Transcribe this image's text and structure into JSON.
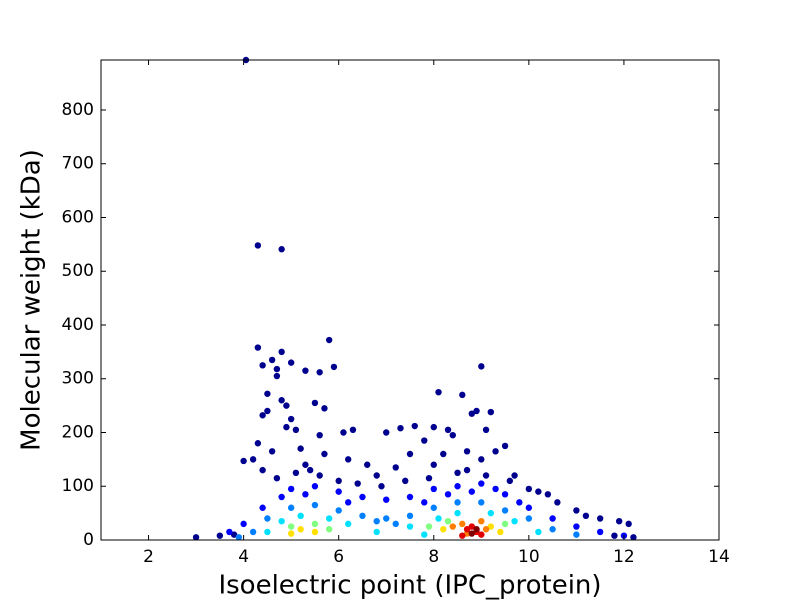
{
  "chart_data": {
    "type": "scatter",
    "x_label": "Isoelectric point (IPC_protein)",
    "y_label": "Molecular weight (kDa)",
    "xlim": [
      1,
      14
    ],
    "xticks": [
      2,
      4,
      6,
      8,
      10,
      12,
      14
    ],
    "ylim": [
      0,
      893
    ],
    "yticks": [
      0,
      100,
      200,
      300,
      400,
      500,
      600,
      700,
      800
    ],
    "grid": false,
    "series": [
      {
        "color": "#00008f",
        "x": [
          4.05,
          4.3,
          4.8,
          5.8,
          4.3,
          4.8,
          5.6,
          4.4,
          4.7,
          4.6,
          5.0,
          5.3,
          4.7,
          5.9,
          9.0,
          8.1,
          8.6,
          4.5,
          4.8,
          4.9,
          5.5,
          5.7,
          4.5,
          4.4,
          8.9,
          9.2,
          8.8,
          5.0,
          4.9,
          5.1,
          5.6,
          6.1,
          6.3,
          7.0,
          7.3,
          7.6,
          8.0,
          8.3,
          8.4,
          9.1,
          9.5,
          4.3,
          4.2,
          4.0,
          4.6,
          5.2,
          5.7,
          6.2,
          7.8,
          8.2,
          8.7,
          9.3,
          9.0,
          10.4,
          10.6,
          11.2,
          11.5,
          11.9,
          12.1,
          10.0,
          3.0,
          3.5,
          3.8,
          6.6,
          7.2,
          7.5,
          6.8,
          4.4,
          5.3,
          8.0,
          9.7,
          11.0,
          12.2,
          11.8,
          4.7,
          5.1,
          5.6,
          6.0,
          6.4,
          6.9,
          7.4,
          7.9,
          8.5,
          9.1,
          9.6,
          10.2,
          5.4,
          8.7
        ],
        "y": [
          893,
          548,
          541,
          372,
          358,
          350,
          312,
          325,
          318,
          335,
          330,
          315,
          305,
          322,
          323,
          275,
          270,
          272,
          260,
          250,
          255,
          245,
          240,
          232,
          240,
          238,
          235,
          225,
          210,
          205,
          195,
          200,
          205,
          200,
          208,
          212,
          210,
          205,
          195,
          205,
          175,
          180,
          150,
          147,
          165,
          170,
          160,
          150,
          185,
          160,
          165,
          165,
          150,
          85,
          70,
          45,
          40,
          35,
          30,
          95,
          5,
          8,
          10,
          140,
          135,
          160,
          120,
          130,
          140,
          140,
          120,
          55,
          5,
          8,
          115,
          125,
          120,
          110,
          105,
          100,
          110,
          115,
          125,
          120,
          110,
          90,
          130,
          130
        ]
      },
      {
        "color": "#0000ff",
        "x": [
          4.4,
          5.0,
          5.5,
          6.0,
          6.5,
          7.0,
          7.5,
          8.0,
          8.5,
          9.0,
          9.5,
          10.0,
          10.5,
          11.0,
          4.0,
          3.7,
          11.5,
          12.0,
          4.8,
          5.3,
          6.2,
          7.8,
          8.3,
          8.8,
          9.3,
          9.8
        ],
        "y": [
          60,
          95,
          100,
          90,
          80,
          75,
          80,
          95,
          100,
          105,
          85,
          60,
          40,
          25,
          30,
          15,
          15,
          8,
          80,
          85,
          70,
          70,
          85,
          90,
          95,
          70
        ]
      },
      {
        "color": "#0080ff",
        "x": [
          4.5,
          5.0,
          5.5,
          6.0,
          6.5,
          7.0,
          7.5,
          8.0,
          8.5,
          9.0,
          9.5,
          10.0,
          10.5,
          4.2,
          11.0,
          7.2,
          6.8,
          3.9
        ],
        "y": [
          40,
          60,
          65,
          55,
          45,
          40,
          45,
          60,
          70,
          70,
          55,
          40,
          20,
          15,
          10,
          30,
          35,
          5
        ]
      },
      {
        "color": "#00e0ff",
        "x": [
          4.8,
          5.2,
          5.8,
          6.2,
          7.5,
          8.1,
          8.5,
          9.2,
          9.7,
          10.2,
          4.5,
          6.8,
          7.8
        ],
        "y": [
          35,
          45,
          40,
          30,
          25,
          40,
          50,
          50,
          35,
          15,
          15,
          15,
          10
        ]
      },
      {
        "color": "#80ff80",
        "x": [
          5.0,
          5.5,
          5.8,
          7.9,
          8.3,
          9.5
        ],
        "y": [
          25,
          30,
          20,
          25,
          35,
          30
        ]
      },
      {
        "color": "#ffe000",
        "x": [
          5.2,
          5.5,
          8.2,
          9.2,
          9.4,
          5.0
        ],
        "y": [
          20,
          15,
          20,
          25,
          15,
          12
        ]
      },
      {
        "color": "#ff8000",
        "x": [
          8.4,
          8.6,
          9.1,
          8.7,
          9.0
        ],
        "y": [
          25,
          30,
          20,
          12,
          35
        ]
      },
      {
        "color": "#e00000",
        "x": [
          8.7,
          8.9,
          9.0,
          8.6,
          8.8
        ],
        "y": [
          20,
          15,
          10,
          8,
          25
        ]
      },
      {
        "color": "#800000",
        "x": [
          8.8,
          8.9
        ],
        "y": [
          12,
          20
        ]
      }
    ]
  }
}
